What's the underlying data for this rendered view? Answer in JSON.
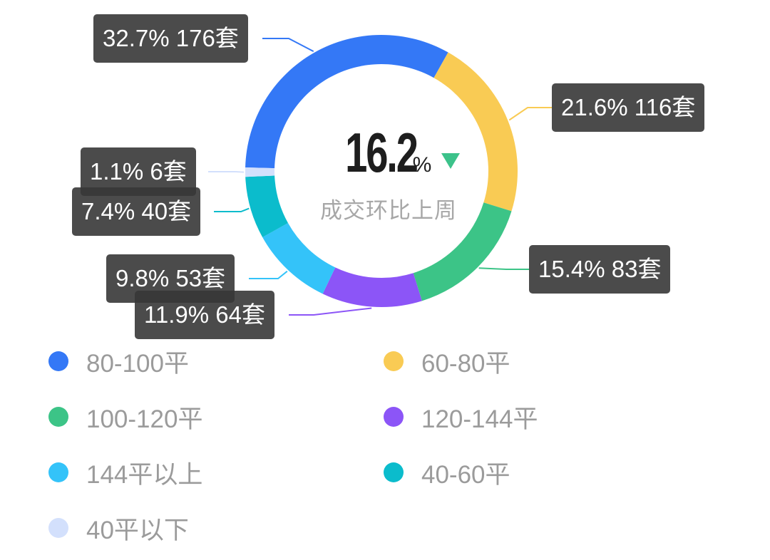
{
  "center": {
    "value": "16.2",
    "unit": "%",
    "trend": "down",
    "trend_color": "#3cc28a",
    "subtitle": "成交环比上周"
  },
  "chart_data": {
    "type": "pie",
    "variant": "donut",
    "title": "",
    "center_text": "16.2% 成交环比上周",
    "order": "clockwise",
    "series": [
      {
        "name": "80-100平",
        "percent": 32.7,
        "count": 176,
        "label": "32.7% 176套",
        "color": "#3478f6"
      },
      {
        "name": "60-80平",
        "percent": 21.6,
        "count": 116,
        "label": "21.6% 116套",
        "color": "#f9cb54"
      },
      {
        "name": "100-120平",
        "percent": 15.4,
        "count": 83,
        "label": "15.4% 83套",
        "color": "#3cc487"
      },
      {
        "name": "120-144平",
        "percent": 11.9,
        "count": 64,
        "label": "11.9% 64套",
        "color": "#8c55f7"
      },
      {
        "name": "144平以上",
        "percent": 9.8,
        "count": 53,
        "label": "9.8% 53套",
        "color": "#34c3f9"
      },
      {
        "name": "40-60平",
        "percent": 7.4,
        "count": 40,
        "label": "7.4% 40套",
        "color": "#0bbccc"
      },
      {
        "name": "40平以下",
        "percent": 1.1,
        "count": 6,
        "label": "1.1% 6套",
        "color": "#d3e0fc"
      }
    ],
    "legend_position": "bottom",
    "legend_columns": 2
  },
  "legend": [
    {
      "label": "80-100平",
      "color": "#3478f6"
    },
    {
      "label": "60-80平",
      "color": "#f9cb54"
    },
    {
      "label": "100-120平",
      "color": "#3cc487"
    },
    {
      "label": "120-144平",
      "color": "#8c55f7"
    },
    {
      "label": "144平以上",
      "color": "#34c3f9"
    },
    {
      "label": "40-60平",
      "color": "#0bbccc"
    },
    {
      "label": "40平以下",
      "color": "#d3e0fc"
    }
  ]
}
